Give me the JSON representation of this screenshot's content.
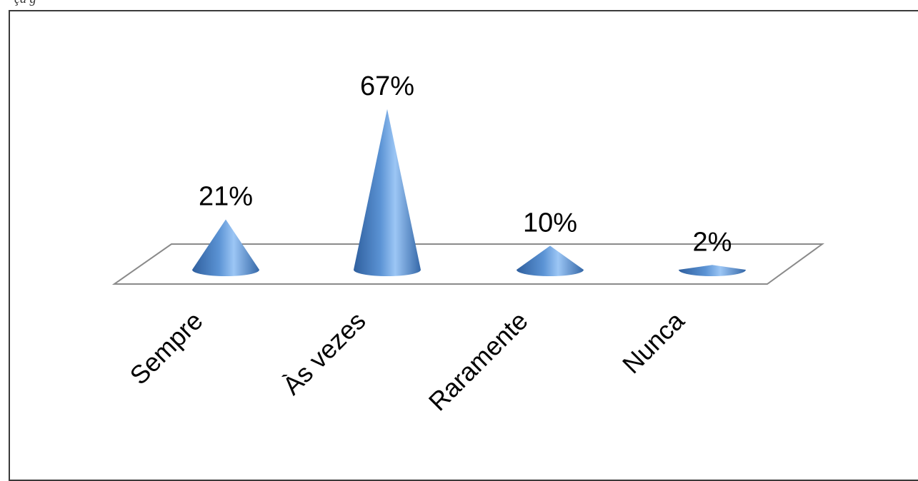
{
  "caption": "çã                         g",
  "chart_data": {
    "type": "bar",
    "style": "3d-cone",
    "categories": [
      "Sempre",
      "Às vezes",
      "Raramente",
      "Nunca"
    ],
    "values": [
      21,
      67,
      10,
      2
    ],
    "data_labels": [
      "21%",
      "67%",
      "10%",
      "2%"
    ],
    "title": "",
    "xlabel": "",
    "ylabel": "",
    "grid": false,
    "legend": "none",
    "colors": {
      "cone_light": "#8cbaf0",
      "cone_mid": "#4f86c6",
      "cone_dark": "#2f5f9e",
      "floor_edge": "#8a8a8a"
    }
  }
}
